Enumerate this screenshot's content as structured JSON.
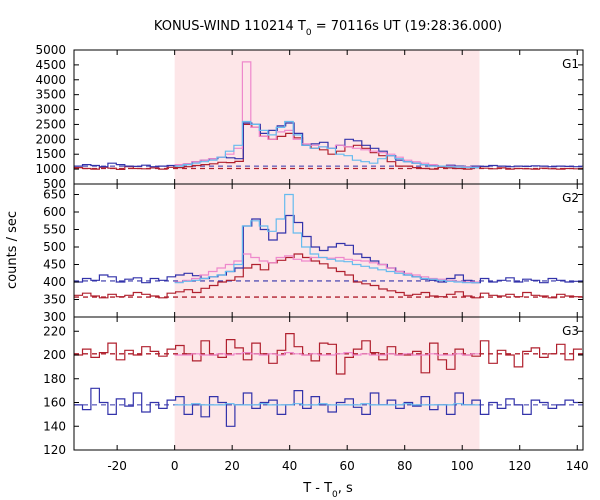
{
  "chart_data": {
    "type": "line",
    "title": "KONUS-WIND 110214 T",
    "title_sub": "0",
    "title_rest": " = 70116s UT (19:28:36.000)",
    "xlabel": "T - T",
    "xlabel_sub": "0",
    "xlabel_rest": ", s",
    "ylabel": "counts / sec",
    "xlim": [
      -35,
      142
    ],
    "x_ticks": [
      -20,
      0,
      20,
      40,
      60,
      80,
      100,
      120,
      140
    ],
    "shaded_interval": [
      0,
      106
    ],
    "colors": {
      "red": "#b0202e",
      "blue": "#3333aa",
      "pink": "#ee88cc",
      "cyan": "#66bbee",
      "shade": "#fde6e8"
    },
    "panels": [
      {
        "label": "G1",
        "ylim": [
          500,
          5000
        ],
        "y_ticks": [
          500,
          1000,
          1500,
          2000,
          2500,
          3000,
          3500,
          4000,
          4500,
          5000
        ],
        "background_red": 1020,
        "background_blue": 1100,
        "series": [
          {
            "color": "red",
            "x0": -35,
            "dx": 2.944,
            "values": [
              1050,
              1020,
              1000,
              1060,
              1030,
              990,
              1080,
              1020,
              1010,
              1040,
              1000,
              1060,
              1050,
              1080,
              1120,
              1150,
              1180,
              1230,
              1220,
              1260,
              2500,
              2400,
              2100,
              2000,
              2100,
              2200,
              2050,
              1800,
              1700,
              1650,
              1500,
              1600,
              1750,
              1800,
              1700,
              1550,
              1450,
              1250,
              1100,
              1100,
              1050,
              1020,
              1000,
              1060,
              1040,
              1020,
              1000,
              1050,
              1030,
              1010,
              1040,
              1000,
              1020,
              1010,
              1000,
              1030,
              1010,
              1000,
              1020,
              1010
            ]
          },
          {
            "color": "blue",
            "x0": -35,
            "dx": 2.944,
            "values": [
              1100,
              1150,
              1120,
              1080,
              1200,
              1150,
              1100,
              1090,
              1130,
              1080,
              1100,
              1120,
              1150,
              1180,
              1250,
              1300,
              1350,
              1400,
              1380,
              1350,
              2550,
              2500,
              2200,
              2300,
              2450,
              2550,
              2200,
              1800,
              1850,
              1900,
              1700,
              1800,
              2000,
              1950,
              1800,
              1700,
              1600,
              1450,
              1300,
              1250,
              1200,
              1150,
              1120,
              1100,
              1130,
              1100,
              1080,
              1100,
              1090,
              1120,
              1100,
              1080,
              1100,
              1090,
              1110,
              1100,
              1080,
              1100,
              1090,
              1080
            ]
          },
          {
            "color": "pink",
            "x0": 0,
            "dx": 2.944,
            "values": [
              1150,
              1180,
              1250,
              1300,
              1350,
              1400,
              1500,
              1700,
              4600,
              2400,
              2100,
              2000,
              2250,
              2300,
              2000,
              1850,
              1800,
              1750,
              1700,
              1800,
              1750,
              1700,
              1650,
              1600,
              1550,
              1500,
              1400,
              1300,
              1250,
              1200,
              1150,
              1100,
              1100,
              1080,
              1080,
              1060
            ]
          },
          {
            "color": "cyan",
            "x0": 0,
            "dx": 2.944,
            "values": [
              1100,
              1150,
              1200,
              1250,
              1300,
              1400,
              1600,
              1800,
              2600,
              2500,
              2300,
              2150,
              2400,
              2600,
              2150,
              1800,
              1700,
              1750,
              1700,
              1500,
              1450,
              1300,
              1250,
              1200,
              1350,
              1450,
              1350,
              1250,
              1200,
              1150,
              1100,
              1100,
              1080,
              1070,
              1060,
              1050
            ]
          }
        ]
      },
      {
        "label": "G2",
        "ylim": [
          300,
          680
        ],
        "y_ticks": [
          300,
          350,
          400,
          450,
          500,
          550,
          600,
          650
        ],
        "background_red": 357,
        "background_blue": 403,
        "series": [
          {
            "color": "red",
            "x0": -35,
            "dx": 2.944,
            "values": [
              362,
              368,
              360,
              355,
              365,
              358,
              362,
              370,
              365,
              360,
              355,
              368,
              372,
              378,
              370,
              382,
              390,
              400,
              405,
              415,
              440,
              450,
              435,
              455,
              462,
              470,
              480,
              470,
              460,
              452,
              440,
              430,
              420,
              400,
              395,
              390,
              380,
              375,
              370,
              362,
              365,
              370,
              360,
              358,
              365,
              372,
              360,
              355,
              368,
              362,
              360,
              365,
              358,
              370,
              362,
              360,
              355,
              365,
              360,
              358
            ]
          },
          {
            "color": "blue",
            "x0": -35,
            "dx": 2.944,
            "values": [
              400,
              410,
              405,
              420,
              415,
              400,
              408,
              412,
              398,
              410,
              405,
              415,
              420,
              425,
              418,
              410,
              415,
              420,
              430,
              440,
              560,
              580,
              550,
              520,
              540,
              590,
              570,
              530,
              500,
              490,
              500,
              510,
              505,
              480,
              470,
              460,
              450,
              440,
              430,
              420,
              415,
              408,
              405,
              400,
              410,
              420,
              405,
              398,
              410,
              400,
              405,
              412,
              400,
              408,
              405,
              398,
              410,
              405,
              400,
              402
            ]
          },
          {
            "color": "pink",
            "x0": 0,
            "dx": 2.944,
            "values": [
              400,
              405,
              410,
              420,
              430,
              440,
              450,
              460,
              480,
              470,
              460,
              455,
              470,
              475,
              465,
              460,
              470,
              470,
              468,
              470,
              465,
              462,
              460,
              455,
              450,
              440,
              430,
              425,
              420,
              415,
              410,
              408,
              405,
              402,
              400,
              400
            ]
          },
          {
            "color": "cyan",
            "x0": 0,
            "dx": 2.944,
            "values": [
              398,
              402,
              405,
              410,
              415,
              420,
              430,
              450,
              560,
              575,
              560,
              545,
              580,
              650,
              540,
              500,
              480,
              470,
              465,
              460,
              458,
              450,
              445,
              440,
              435,
              430,
              425,
              420,
              415,
              410,
              408,
              405,
              402,
              400,
              398,
              398
            ]
          }
        ]
      },
      {
        "label": "G3",
        "ylim": [
          120,
          232
        ],
        "y_ticks": [
          120,
          140,
          160,
          180,
          200,
          220
        ],
        "background_red": 201,
        "background_blue": 158,
        "series": [
          {
            "color": "red",
            "x0": -35,
            "dx": 2.944,
            "values": [
              200,
              205,
              198,
              202,
              210,
              196,
              204,
              200,
              207,
              203,
              199,
              205,
              208,
              201,
              195,
              212,
              200,
              198,
              213,
              206,
              196,
              210,
              201,
              193,
              204,
              218,
              207,
              200,
              195,
              210,
              209,
              184,
              198,
              205,
              212,
              202,
              196,
              207,
              200,
              200,
              203,
              185,
              210,
              196,
              188,
              205,
              200,
              199,
              212,
              193,
              204,
              200,
              190,
              203,
              206,
              198,
              201,
              209,
              196,
              205
            ]
          },
          {
            "color": "blue",
            "x0": -35,
            "dx": 2.944,
            "values": [
              158,
              154,
              172,
              160,
              150,
              163,
              157,
              168,
              152,
              160,
              155,
              162,
              165,
              150,
              158,
              148,
              165,
              160,
              140,
              158,
              168,
              155,
              160,
              162,
              150,
              158,
              170,
              155,
              165,
              158,
              152,
              160,
              163,
              156,
              150,
              168,
              158,
              162,
              155,
              160,
              157,
              165,
              154,
              158,
              150,
              168,
              158,
              162,
              150,
              160,
              155,
              163,
              158,
              150,
              162,
              160,
              155,
              158,
              162,
              160
            ]
          },
          {
            "color": "pink",
            "x0": 0,
            "dx": 2.944,
            "values": [
              200,
              200,
              201,
              200,
              200,
              201,
              200,
              201,
              202,
              201,
              200,
              201,
              200,
              202,
              201,
              200,
              201,
              200,
              200,
              201,
              202,
              200,
              201,
              200,
              200,
              201,
              200,
              201,
              200,
              200,
              201,
              200,
              200,
              201,
              200,
              201
            ]
          },
          {
            "color": "cyan",
            "x0": 0,
            "dx": 2.944,
            "values": [
              158,
              158,
              159,
              158,
              158,
              158,
              159,
              158,
              158,
              158,
              159,
              158,
              158,
              158,
              159,
              158,
              158,
              159,
              158,
              158,
              158,
              158,
              159,
              158,
              158,
              158,
              158,
              159,
              158,
              158,
              158,
              158,
              158,
              159,
              158,
              158
            ]
          }
        ]
      }
    ]
  }
}
